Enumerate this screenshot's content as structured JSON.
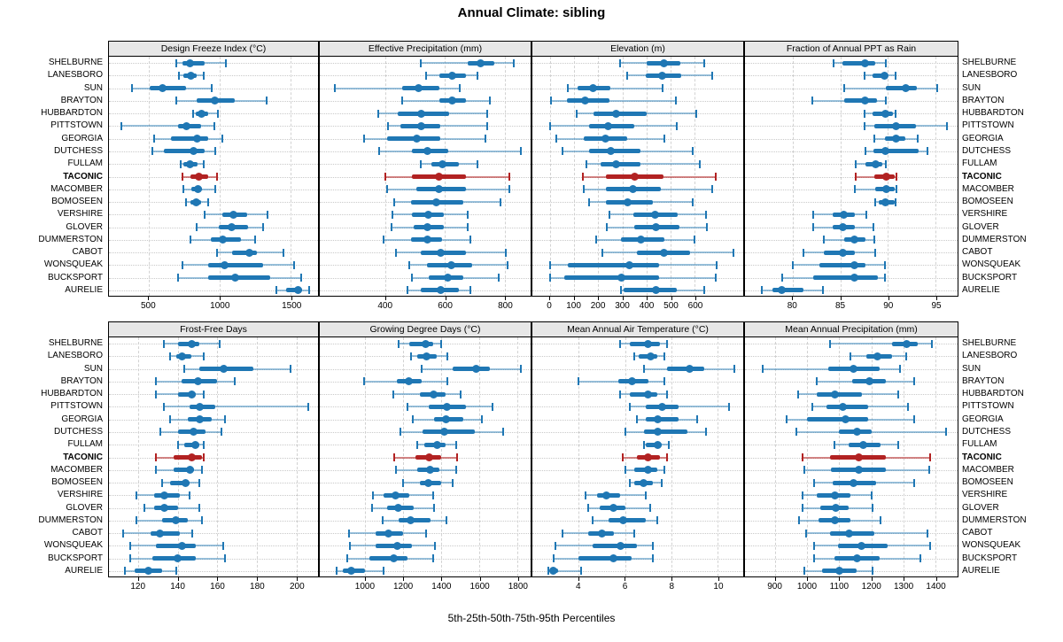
{
  "title": "Annual Climate: sibling",
  "footer": "5th-25th-50th-75th-95th Percentiles",
  "highlight_category": "TACONIC",
  "colors": {
    "series": "#1f77b4",
    "series_light": "rgba(31,119,180,0.45)",
    "highlight": "#b22222",
    "highlight_light": "rgba(178,34,34,0.55)",
    "grid": "#d2d2d2",
    "panel_header_bg": "#e7e7e7",
    "border": "#000000"
  },
  "categories": [
    "SHELBURNE",
    "LANESBORO",
    "SUN",
    "BRAYTON",
    "HUBBARDTON",
    "PITTSTOWN",
    "GEORGIA",
    "DUTCHESS",
    "FULLAM",
    "TACONIC",
    "MACOMBER",
    "BOMOSEEN",
    "VERSHIRE",
    "GLOVER",
    "DUMMERSTON",
    "CABOT",
    "WONSQUEAK",
    "BUCKSPORT",
    "AURELIE"
  ],
  "chart_data": {
    "type": "dot-interval",
    "orientation": "horizontal",
    "grid": true,
    "percentiles": [
      5,
      25,
      50,
      75,
      95
    ],
    "panels": [
      {
        "title": "Design Freeze Index (°C)",
        "xlim": [
          220,
          1690
        ],
        "ticks": [
          500,
          1000,
          1500
        ],
        "values": [
          [
            695,
            735,
            790,
            890,
            1040
          ],
          [
            715,
            745,
            795,
            835,
            885
          ],
          [
            380,
            505,
            595,
            765,
            940
          ],
          [
            695,
            835,
            965,
            1105,
            1330
          ],
          [
            810,
            830,
            870,
            915,
            985
          ],
          [
            310,
            705,
            765,
            865,
            960
          ],
          [
            540,
            655,
            840,
            915,
            1015
          ],
          [
            525,
            605,
            815,
            890,
            965
          ],
          [
            725,
            745,
            790,
            845,
            885
          ],
          [
            735,
            790,
            850,
            915,
            980
          ],
          [
            745,
            800,
            845,
            875,
            965
          ],
          [
            765,
            790,
            835,
            865,
            920
          ],
          [
            895,
            1020,
            1095,
            1190,
            1335
          ],
          [
            835,
            990,
            1080,
            1200,
            1305
          ],
          [
            790,
            935,
            1020,
            1150,
            1250
          ],
          [
            980,
            1085,
            1205,
            1260,
            1450
          ],
          [
            735,
            915,
            1035,
            1305,
            1520
          ],
          [
            705,
            920,
            1105,
            1355,
            1570
          ],
          [
            1400,
            1465,
            1550,
            1575,
            1630
          ]
        ]
      },
      {
        "title": "Effective Precipitation (mm)",
        "xlim": [
          180,
          887
        ],
        "ticks": [
          400,
          600,
          800
        ],
        "values": [
          [
            520,
            675,
            720,
            765,
            830
          ],
          [
            535,
            580,
            625,
            670,
            710
          ],
          [
            230,
            455,
            510,
            580,
            650
          ],
          [
            455,
            580,
            625,
            670,
            750
          ],
          [
            375,
            440,
            520,
            615,
            740
          ],
          [
            410,
            450,
            520,
            585,
            740
          ],
          [
            330,
            405,
            505,
            585,
            735
          ],
          [
            380,
            490,
            540,
            610,
            855
          ],
          [
            520,
            555,
            590,
            645,
            710
          ],
          [
            400,
            490,
            580,
            670,
            815
          ],
          [
            405,
            505,
            580,
            670,
            815
          ],
          [
            430,
            485,
            570,
            660,
            785
          ],
          [
            425,
            490,
            545,
            595,
            675
          ],
          [
            420,
            495,
            540,
            595,
            675
          ],
          [
            395,
            485,
            540,
            590,
            685
          ],
          [
            435,
            520,
            585,
            670,
            805
          ],
          [
            480,
            540,
            620,
            690,
            810
          ],
          [
            490,
            545,
            610,
            660,
            780
          ],
          [
            475,
            520,
            585,
            645,
            685
          ]
        ]
      },
      {
        "title": "Elevation (m)",
        "xlim": [
          -73,
          800
        ],
        "ticks": [
          0,
          100,
          200,
          300,
          400,
          500,
          600
        ],
        "values": [
          [
            290,
            400,
            470,
            540,
            640
          ],
          [
            320,
            395,
            465,
            545,
            670
          ],
          [
            75,
            115,
            180,
            250,
            465
          ],
          [
            5,
            70,
            145,
            245,
            520
          ],
          [
            110,
            180,
            275,
            400,
            605
          ],
          [
            0,
            160,
            240,
            350,
            525
          ],
          [
            25,
            140,
            230,
            320,
            475
          ],
          [
            50,
            160,
            250,
            375,
            590
          ],
          [
            150,
            210,
            275,
            375,
            620
          ],
          [
            135,
            230,
            350,
            470,
            685
          ],
          [
            140,
            230,
            345,
            460,
            670
          ],
          [
            160,
            230,
            320,
            425,
            590
          ],
          [
            245,
            345,
            435,
            530,
            645
          ],
          [
            235,
            350,
            440,
            535,
            650
          ],
          [
            190,
            295,
            375,
            475,
            600
          ],
          [
            215,
            360,
            470,
            580,
            760
          ],
          [
            0,
            75,
            330,
            450,
            690
          ],
          [
            0,
            60,
            295,
            450,
            685
          ],
          [
            295,
            305,
            440,
            525,
            640
          ]
        ]
      },
      {
        "title": "Fraction of Annual PPT as Rain",
        "xlim": [
          75,
          97.3
        ],
        "ticks": [
          80,
          85,
          90,
          95
        ],
        "values": [
          [
            84.3,
            85.2,
            87.6,
            88.7,
            89.8
          ],
          [
            87.5,
            88.4,
            89.6,
            90.0,
            90.8
          ],
          [
            85.4,
            89.8,
            91.9,
            93.0,
            95.2
          ],
          [
            82.1,
            85.4,
            87.6,
            88.8,
            89.8
          ],
          [
            87.5,
            88.4,
            89.7,
            90.5,
            90.8
          ],
          [
            87.5,
            88.6,
            90.8,
            92.9,
            96.2
          ],
          [
            88.6,
            89.7,
            90.8,
            91.8,
            93.1
          ],
          [
            87.6,
            88.5,
            89.7,
            93.2,
            94.1
          ],
          [
            86.6,
            87.6,
            88.7,
            89.4,
            89.8
          ],
          [
            86.6,
            88.6,
            89.8,
            90.7,
            90.9
          ],
          [
            86.5,
            88.7,
            89.8,
            90.7,
            90.9
          ],
          [
            88.7,
            89.0,
            89.7,
            90.7,
            90.8
          ],
          [
            82.2,
            84.2,
            85.4,
            86.5,
            87.7
          ],
          [
            82.2,
            84.2,
            85.3,
            86.5,
            88.5
          ],
          [
            83.3,
            85.4,
            86.5,
            87.6,
            88.6
          ],
          [
            81.1,
            83.3,
            85.3,
            86.5,
            88.7
          ],
          [
            80.0,
            82.8,
            86.5,
            87.6,
            89.7
          ],
          [
            78.9,
            82.2,
            86.5,
            88.9,
            89.7
          ],
          [
            76.8,
            77.9,
            78.9,
            81.1,
            83.2
          ]
        ]
      },
      {
        "title": "Frost-Free Days",
        "xlim": [
          105,
          211
        ],
        "ticks": [
          120,
          140,
          160,
          180,
          200
        ],
        "values": [
          [
            133,
            140,
            147,
            151,
            161
          ],
          [
            136,
            139,
            142,
            147,
            153
          ],
          [
            143,
            151,
            163,
            178,
            197
          ],
          [
            129,
            142,
            150,
            160,
            169
          ],
          [
            129,
            140,
            147,
            149,
            153
          ],
          [
            133,
            146,
            151,
            159,
            206
          ],
          [
            136,
            145,
            151,
            157,
            164
          ],
          [
            131,
            140,
            148,
            154,
            162
          ],
          [
            140,
            143,
            149,
            151,
            153
          ],
          [
            129,
            138,
            147,
            152,
            153
          ],
          [
            129,
            138,
            146,
            148,
            152
          ],
          [
            132,
            136,
            144,
            146,
            151
          ],
          [
            119,
            128,
            133,
            141,
            146
          ],
          [
            123,
            128,
            133,
            140,
            151
          ],
          [
            119,
            132,
            139,
            145,
            152
          ],
          [
            112,
            126,
            131,
            141,
            147
          ],
          [
            116,
            129,
            142,
            149,
            163
          ],
          [
            116,
            127,
            140,
            149,
            164
          ],
          [
            113,
            118,
            125,
            132,
            139
          ]
        ]
      },
      {
        "title": "Growing Degree Days (°C)",
        "xlim": [
          760,
          1870
        ],
        "ticks": [
          1000,
          1200,
          1400,
          1600,
          1800
        ],
        "values": [
          [
            1175,
            1230,
            1315,
            1355,
            1400
          ],
          [
            1240,
            1275,
            1320,
            1375,
            1430
          ],
          [
            1295,
            1460,
            1585,
            1655,
            1820
          ],
          [
            995,
            1165,
            1230,
            1295,
            1430
          ],
          [
            1145,
            1285,
            1360,
            1420,
            1500
          ],
          [
            1220,
            1335,
            1430,
            1530,
            1670
          ],
          [
            1250,
            1360,
            1425,
            1515,
            1615
          ],
          [
            1185,
            1300,
            1415,
            1575,
            1725
          ],
          [
            1275,
            1310,
            1380,
            1420,
            1480
          ],
          [
            1150,
            1265,
            1335,
            1400,
            1485
          ],
          [
            1160,
            1275,
            1340,
            1390,
            1480
          ],
          [
            1200,
            1285,
            1330,
            1400,
            1460
          ],
          [
            1040,
            1095,
            1160,
            1230,
            1355
          ],
          [
            1035,
            1115,
            1175,
            1255,
            1360
          ],
          [
            1090,
            1175,
            1240,
            1345,
            1425
          ],
          [
            915,
            1055,
            1120,
            1200,
            1320
          ],
          [
            920,
            1055,
            1170,
            1245,
            1365
          ],
          [
            905,
            1020,
            1150,
            1220,
            1355
          ],
          [
            850,
            880,
            925,
            1000,
            1095
          ]
        ]
      },
      {
        "title": "Mean Annual Air Temperature (°C)",
        "xlim": [
          2,
          11.1
        ],
        "ticks": [
          4,
          6,
          8,
          10
        ],
        "values": [
          [
            5.8,
            6.2,
            7.0,
            7.5,
            7.8
          ],
          [
            6.4,
            6.6,
            7.1,
            7.4,
            7.7
          ],
          [
            6.8,
            7.8,
            8.8,
            9.4,
            10.7
          ],
          [
            4.0,
            5.7,
            6.3,
            7.0,
            7.7
          ],
          [
            5.8,
            6.2,
            7.0,
            7.4,
            7.8
          ],
          [
            6.2,
            6.9,
            7.6,
            8.3,
            10.5
          ],
          [
            6.5,
            6.9,
            7.4,
            8.3,
            9.1
          ],
          [
            6.0,
            6.8,
            7.4,
            8.7,
            9.5
          ],
          [
            6.8,
            6.9,
            7.4,
            7.6,
            7.9
          ],
          [
            5.9,
            6.5,
            7.0,
            7.5,
            7.8
          ],
          [
            6.0,
            6.4,
            7.0,
            7.4,
            7.7
          ],
          [
            6.2,
            6.4,
            6.8,
            7.2,
            7.6
          ],
          [
            4.3,
            4.8,
            5.2,
            5.8,
            6.9
          ],
          [
            4.4,
            4.9,
            5.5,
            6.0,
            7.1
          ],
          [
            4.6,
            5.3,
            5.9,
            6.9,
            7.4
          ],
          [
            3.3,
            4.4,
            5.0,
            5.5,
            6.4
          ],
          [
            3.0,
            4.6,
            5.8,
            6.5,
            7.2
          ],
          [
            2.9,
            4.0,
            5.5,
            6.3,
            7.2
          ],
          [
            2.7,
            2.8,
            2.9,
            3.1,
            4.1
          ]
        ]
      },
      {
        "title": "Mean Annual Precipitation (mm)",
        "xlim": [
          805,
          1470
        ],
        "ticks": [
          900,
          1000,
          1100,
          1200,
          1300,
          1400
        ],
        "values": [
          [
            1070,
            1265,
            1310,
            1345,
            1390
          ],
          [
            1135,
            1185,
            1220,
            1265,
            1310
          ],
          [
            860,
            1065,
            1145,
            1225,
            1290
          ],
          [
            1030,
            1140,
            1195,
            1245,
            1335
          ],
          [
            970,
            1030,
            1085,
            1170,
            1285
          ],
          [
            1015,
            1060,
            1110,
            1190,
            1315
          ],
          [
            935,
            1000,
            1120,
            1190,
            1335
          ],
          [
            965,
            1100,
            1155,
            1200,
            1435
          ],
          [
            1085,
            1130,
            1175,
            1230,
            1285
          ],
          [
            985,
            1070,
            1160,
            1245,
            1385
          ],
          [
            990,
            1075,
            1160,
            1245,
            1380
          ],
          [
            1020,
            1080,
            1145,
            1215,
            1335
          ],
          [
            985,
            1030,
            1085,
            1135,
            1200
          ],
          [
            985,
            1040,
            1090,
            1130,
            1205
          ],
          [
            975,
            1035,
            1085,
            1135,
            1230
          ],
          [
            995,
            1070,
            1130,
            1210,
            1375
          ],
          [
            1020,
            1095,
            1170,
            1250,
            1385
          ],
          [
            1020,
            1085,
            1155,
            1225,
            1355
          ],
          [
            990,
            1045,
            1100,
            1155,
            1205
          ]
        ]
      }
    ]
  }
}
